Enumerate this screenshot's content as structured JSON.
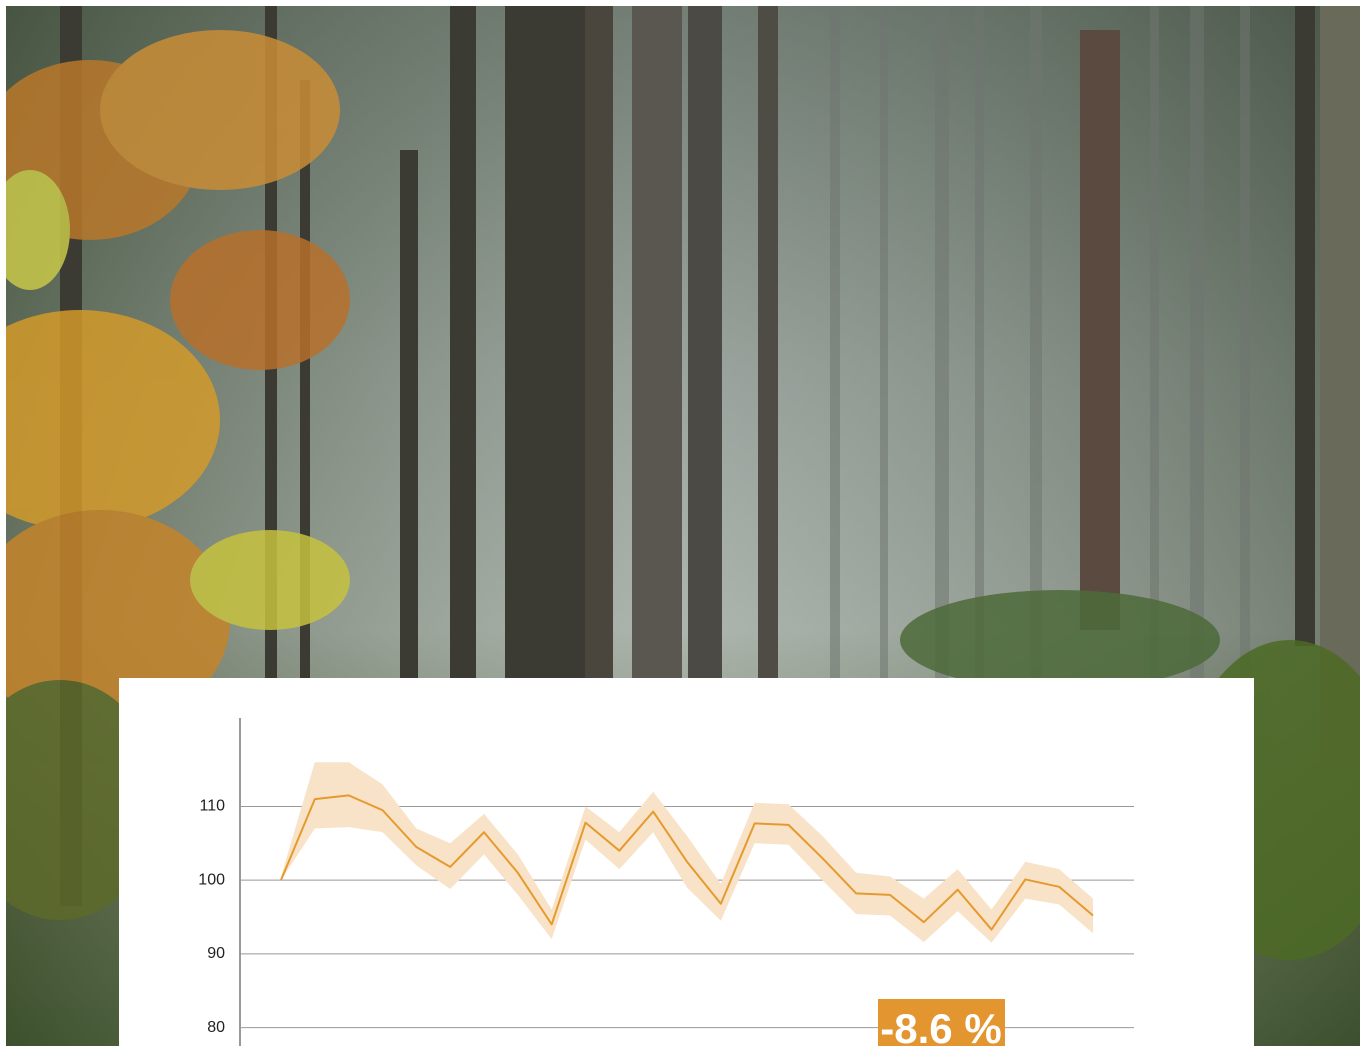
{
  "chart_data": {
    "type": "line",
    "categories": [
      null,
      null,
      null,
      null,
      null,
      null,
      null,
      null,
      null,
      null,
      null,
      null,
      null,
      null,
      null,
      null,
      null,
      null,
      null,
      null,
      null,
      null,
      null,
      null,
      null
    ],
    "values": [
      100,
      111,
      111.5,
      109.5,
      104.5,
      101.8,
      106.5,
      101,
      94,
      107.8,
      104,
      109.3,
      102.5,
      96.8,
      107.7,
      107.5,
      103,
      98.2,
      98,
      94.3,
      98.7,
      93.3,
      100.1,
      99.1,
      95.2
    ],
    "upper": [
      100.5,
      116,
      116,
      113,
      107,
      105,
      109,
      103.5,
      96,
      110,
      106.5,
      112,
      106,
      99.5,
      110.5,
      110.3,
      106,
      101,
      100.5,
      97.5,
      101.5,
      96,
      102.5,
      101.5,
      97.5
    ],
    "lower": [
      100,
      107,
      107.2,
      106.5,
      102,
      98.8,
      103.5,
      98,
      92,
      105.5,
      101.5,
      106.5,
      99,
      94.5,
      105,
      104.8,
      100,
      95.4,
      95.2,
      91.6,
      95.8,
      91.5,
      97.5,
      96.7,
      92.8
    ],
    "color": "#e69a2e",
    "band_color": "#f8e3c8",
    "ylim": [
      77.5,
      122
    ],
    "yticks": [
      80,
      90,
      100,
      110
    ],
    "grid": true,
    "annotation": "-8.6 %",
    "annotation_color": "#e3952f"
  }
}
